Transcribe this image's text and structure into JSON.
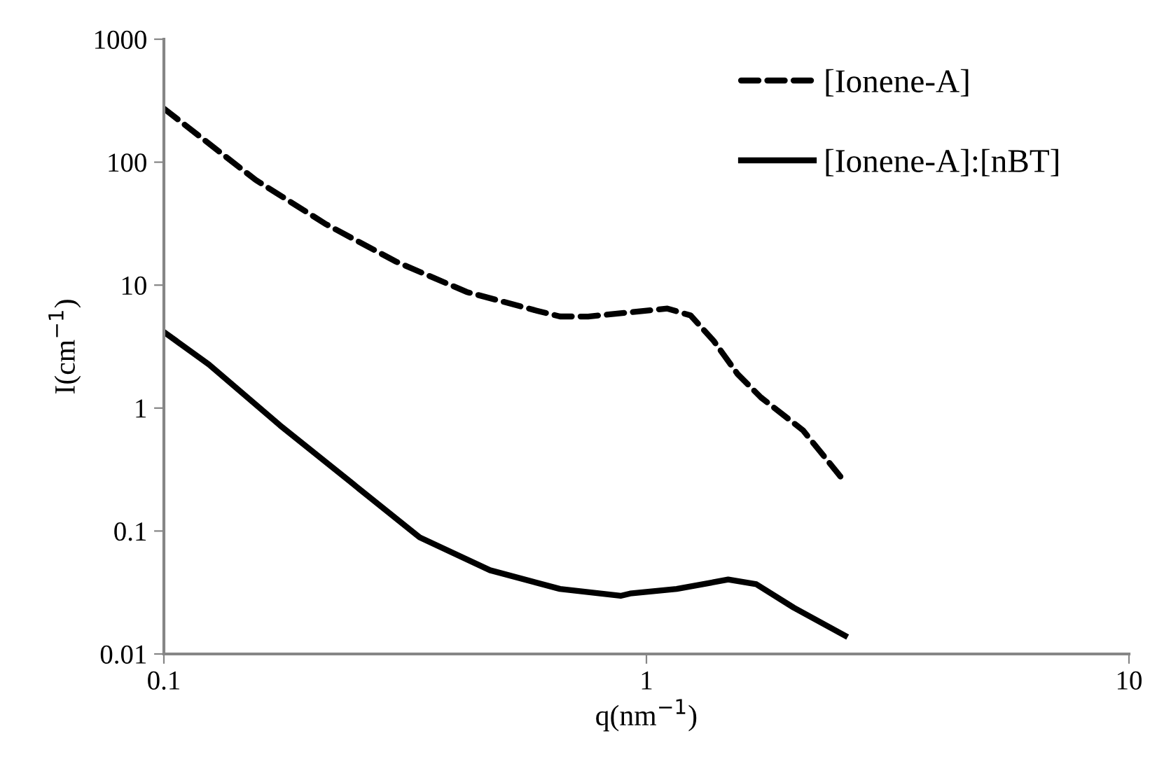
{
  "chart_data": {
    "type": "line",
    "xlabel": "q(nm$^{−1}$)",
    "ylabel": "I(cm$^{−1}$)",
    "log": "xy",
    "xlim": [
      0.1,
      10
    ],
    "xticks": [
      0.1,
      1,
      10
    ],
    "ylim": [
      0.01,
      1000
    ],
    "yticks": [
      0.01,
      0.1,
      1,
      10,
      100,
      1000
    ],
    "grid": false,
    "legend": "top right",
    "marker": "none",
    "series": [
      {
        "name": "[Ionene-A]",
        "color": "#000000",
        "line_style": "dashed",
        "x": [
          0.1,
          0.155,
          0.217,
          0.303,
          0.424,
          0.592,
          0.662,
          0.757,
          0.884,
          1.105,
          1.235,
          1.38,
          1.545,
          1.727,
          2.11,
          2.55
        ],
        "values": [
          273,
          71.6,
          31.2,
          15.5,
          8.8,
          6.2,
          5.56,
          5.55,
          5.9,
          6.45,
          5.66,
          3.5,
          1.89,
          1.22,
          0.66,
          0.264
        ]
      },
      {
        "name": "[Ionene-A]:[nBT]",
        "color": "#000000",
        "line_style": "solid",
        "x": [
          0.1,
          0.124,
          0.174,
          0.243,
          0.339,
          0.474,
          0.662,
          0.884,
          0.925,
          1.155,
          1.477,
          1.69,
          2.02,
          2.58
        ],
        "values": [
          4.16,
          2.26,
          0.724,
          0.253,
          0.0887,
          0.048,
          0.0338,
          0.0297,
          0.031,
          0.0338,
          0.0403,
          0.0369,
          0.0238,
          0.0141
        ]
      }
    ]
  }
}
